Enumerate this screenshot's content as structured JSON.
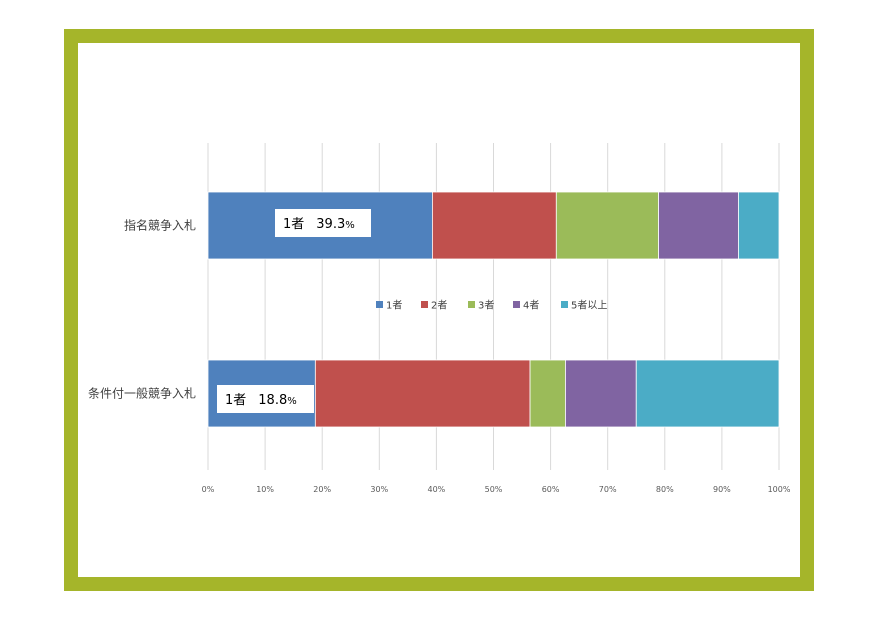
{
  "chart_data": {
    "type": "bar",
    "orientation": "horizontal",
    "stacked": "percent",
    "categories": [
      "指名競争入札",
      "条件付一般競争入札"
    ],
    "series": [
      {
        "name": "1者",
        "color": "#4f81bd",
        "values": [
          39.3,
          18.8
        ]
      },
      {
        "name": "2者",
        "color": "#c0504d",
        "values": [
          21.7,
          37.6
        ]
      },
      {
        "name": "3者",
        "color": "#9bbb59",
        "values": [
          17.9,
          6.2
        ]
      },
      {
        "name": "4者",
        "color": "#8064a2",
        "values": [
          14.0,
          12.4
        ]
      },
      {
        "name": "5者以上",
        "color": "#4bacc6",
        "values": [
          7.1,
          25.0
        ]
      }
    ],
    "xlim": [
      0,
      100
    ],
    "x_ticks": [
      "0%",
      "10%",
      "20%",
      "30%",
      "40%",
      "50%",
      "60%",
      "70%",
      "80%",
      "90%",
      "100%"
    ],
    "grid": true,
    "legend_position": "center",
    "annotations": [
      {
        "category": "指名競争入札",
        "label": "1者",
        "value": "39.3",
        "unit": "%"
      },
      {
        "category": "条件付一般競争入札",
        "label": "1者",
        "value": "18.8",
        "unit": "%"
      }
    ]
  },
  "frame_color": "#a5b52a"
}
